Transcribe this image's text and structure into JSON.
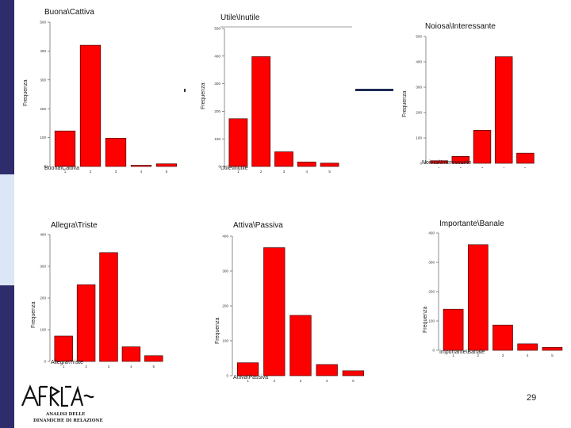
{
  "slide": {
    "number": "29"
  },
  "logo": {
    "lines": [
      "ANALISI DELLE",
      "DINAMICHE DI RELAZIONE"
    ]
  },
  "chart_data": [
    {
      "type": "bar",
      "title": "Buona\\Cattiva",
      "xlabel": "Buona\\Cattiva",
      "ylabel": "Frequenza",
      "categories": [
        "1",
        "2",
        "3",
        "4",
        "5"
      ],
      "values": [
        123,
        420,
        98,
        4,
        9
      ],
      "ylim": [
        0,
        500
      ],
      "yticks": [
        0,
        100,
        200,
        300,
        400,
        500
      ]
    },
    {
      "type": "bar",
      "title": "Utile\\Inutile",
      "xlabel": "Utile\\Inutile",
      "ylabel": "Frequenza",
      "categories": [
        "1",
        "2",
        "3",
        "4",
        "5"
      ],
      "values": [
        173,
        398,
        53,
        16,
        12
      ],
      "ylim": [
        0,
        500
      ],
      "yticks": [
        0,
        100,
        200,
        300,
        400,
        500
      ]
    },
    {
      "type": "bar",
      "title": "Noiosa\\Interessante",
      "xlabel": "Noiosa\\Interessante",
      "ylabel": "Frequenza",
      "categories": [
        "1",
        "2",
        "3",
        "4",
        "5"
      ],
      "values": [
        10,
        27,
        130,
        420,
        40
      ],
      "ylim": [
        0,
        500
      ],
      "yticks": [
        0,
        100,
        200,
        300,
        400,
        500
      ]
    },
    {
      "type": "bar",
      "title": "Allegra\\Triste",
      "xlabel": "Allegra\\Triste",
      "ylabel": "Frequenza",
      "categories": [
        "1",
        "2",
        "3",
        "4",
        "5"
      ],
      "values": [
        80,
        242,
        343,
        46,
        18
      ],
      "ylim": [
        0,
        400
      ],
      "yticks": [
        0,
        100,
        200,
        300,
        400
      ]
    },
    {
      "type": "bar",
      "title": "Attiva\\Passiva",
      "xlabel": "Attiva\\Passiva",
      "ylabel": "Frequenza",
      "categories": [
        "1",
        "2",
        "3",
        "4",
        "5"
      ],
      "values": [
        37,
        367,
        173,
        32,
        14
      ],
      "ylim": [
        0,
        400
      ],
      "yticks": [
        0,
        100,
        200,
        300,
        400
      ]
    },
    {
      "type": "bar",
      "title": "Importante\\Banale",
      "xlabel": "Importante\\Banale",
      "ylabel": "Frequenza",
      "categories": [
        "1",
        "2",
        "3",
        "4",
        "5"
      ],
      "values": [
        140,
        360,
        86,
        22,
        10
      ],
      "ylim": [
        0,
        400
      ],
      "yticks": [
        0,
        100,
        200,
        300,
        400
      ]
    }
  ]
}
